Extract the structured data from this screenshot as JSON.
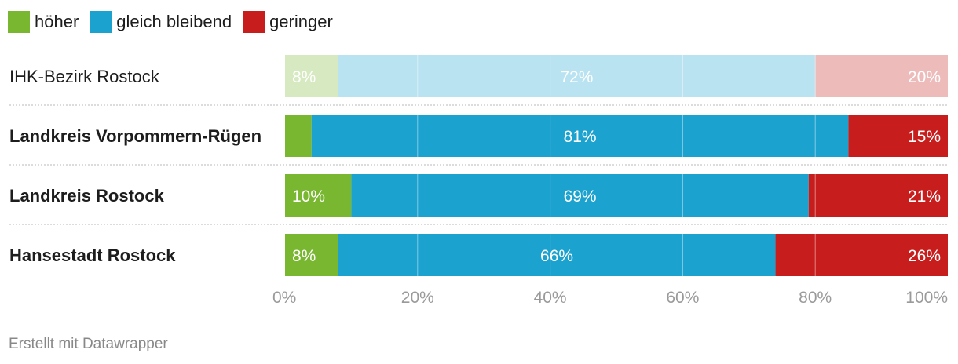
{
  "chart_data": {
    "type": "bar",
    "orientation": "horizontal",
    "stacked": true,
    "categories": [
      "IHK-Bezirk Rostock",
      "Landkreis Vorpommern-Rügen",
      "Landkreis Rostock",
      "Hansestadt Rostock"
    ],
    "category_emphasis": [
      false,
      true,
      true,
      true
    ],
    "series": [
      {
        "name": "höher",
        "color": "#78b72f",
        "values": [
          8,
          4,
          10,
          8
        ],
        "labels": [
          "8%",
          "",
          "10%",
          "8%"
        ]
      },
      {
        "name": "gleich bleibend",
        "color": "#1ba2cf",
        "values": [
          72,
          81,
          69,
          66
        ],
        "labels": [
          "72%",
          "81%",
          "69%",
          "66%"
        ]
      },
      {
        "name": "geringer",
        "color": "#c71e1d",
        "values": [
          20,
          15,
          21,
          26
        ],
        "labels": [
          "20%",
          "15%",
          "21%",
          "26%"
        ]
      }
    ],
    "highlighted_rows": [
      false,
      true,
      true,
      true
    ],
    "xlim": [
      0,
      100
    ],
    "x_ticks": [
      0,
      20,
      40,
      60,
      80,
      100
    ],
    "x_tick_labels": [
      "0%",
      "20%",
      "40%",
      "60%",
      "80%",
      "100%"
    ],
    "grid": true,
    "legend_position": "top-left"
  },
  "footer": {
    "credit": "Erstellt mit Datawrapper"
  }
}
